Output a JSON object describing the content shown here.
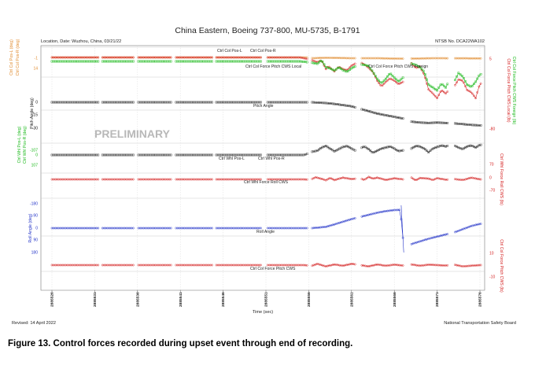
{
  "chart_data": {
    "type": "line",
    "title": "China Eastern, Boeing 737-800, MU-5735, B-1791",
    "location_date": "Location, Date: Wuzhou, China, 03/21/22",
    "ntsb_no": "NTSB No. DCA22WA102",
    "watermark": "PRELIMINARY",
    "xlabel": "Time (sec)",
    "x_ticks": [
      "2885526",
      "2885531",
      "2885536",
      "2885541",
      "2885546",
      "2885551",
      "2885556",
      "2885561",
      "2885566",
      "2885571",
      "2885576"
    ],
    "revised": "Revised: 14 April 2022",
    "agency": "National Transportation Safety Board",
    "panels": [
      {
        "left_labels": [
          {
            "text": "Ctrl Col Pos-L (deg)",
            "color": "#e08a2c"
          },
          {
            "text": "Ctrl Col Pos-R (deg)",
            "color": "#e08a2c"
          }
        ],
        "left_ticks": [
          "-1",
          "14"
        ],
        "right_labels": [
          {
            "text": "Ctrl Col Force Pitch CWS Local (lb)",
            "color": "#d42020"
          },
          {
            "text": "Ctrl Col Force Pitch CWS Foreign (lb)",
            "color": "#18b818"
          }
        ],
        "right_ticks": [
          "5",
          "-80"
        ],
        "series": [
          "Ctrl Col Pos-L",
          "Ctrl Col Pos-R",
          "Ctrl Col Force Pitch CWS Local",
          "Ctrl Col Force Pitch CWS Foreign"
        ]
      },
      {
        "left_labels": [
          {
            "text": "Pitch Angle (deg)",
            "color": "#111111"
          }
        ],
        "left_ticks": [
          "0",
          "-15",
          "-30"
        ],
        "series": [
          "Pitch Angle"
        ]
      },
      {
        "left_labels": [
          {
            "text": "Ctrl Whl Pos-L (deg)",
            "color": "#18b818"
          },
          {
            "text": "Ctrl Whl Pos-R (deg)",
            "color": "#18b818"
          }
        ],
        "left_ticks": [
          "-107",
          "0",
          "107"
        ],
        "series": [
          "Ctrl Whl Pos-L",
          "Ctrl Whl Pos-R"
        ]
      },
      {
        "right_labels": [
          {
            "text": "Ctrl Whl Force Roll CWS (lb)",
            "color": "#d42020"
          }
        ],
        "right_ticks": [
          "70",
          "0",
          "-70"
        ],
        "series": [
          "Ctrl Whl Force Roll CWS"
        ]
      },
      {
        "left_labels": [
          {
            "text": "Roll Angle (deg)",
            "color": "#2434c8"
          }
        ],
        "left_ticks": [
          "-180",
          "-90",
          "0",
          "90",
          "180"
        ],
        "series": [
          "Roll Angle"
        ]
      },
      {
        "right_labels": [
          {
            "text": "Ctrl Col Force Pitch CWS (lb)",
            "color": "#d42020"
          }
        ],
        "right_ticks": [
          "10",
          "-10"
        ],
        "series": [
          "Ctrl Col Force Pitch CWS"
        ]
      }
    ],
    "data_segments": [
      [
        2885526,
        2885531.4
      ],
      [
        2885531.9,
        2885535.6
      ],
      [
        2885536.1,
        2885540.0
      ],
      [
        2885540.5,
        2885544.7
      ],
      [
        2885545.2,
        2885550.4
      ],
      [
        2885551.2,
        2885555.9
      ],
      [
        2885556.4,
        2885561.4
      ],
      [
        2885562.2,
        2885567.1
      ],
      [
        2885568.0,
        2885572.3
      ],
      [
        2885573.1,
        2885576.2
      ]
    ],
    "series": [
      {
        "name": "Ctrl Col Pos-L",
        "color": "#e08a2c",
        "data": [
          [
            2885526.0,
            1.0
          ],
          [
            2885555.8,
            1.0
          ],
          [
            2885556.5,
            0.5
          ],
          [
            2885558.0,
            0.8
          ],
          [
            2885561.0,
            0.5
          ],
          [
            2885564.0,
            0.5
          ],
          [
            2885567.0,
            0.2
          ],
          [
            2885570.5,
            0.5
          ],
          [
            2885576.0,
            0.4
          ]
        ]
      },
      {
        "name": "Ctrl Col Force Pitch CWS Local",
        "color": "#d42020",
        "data": [
          [
            2885526.0,
            0.0
          ],
          [
            2885555.0,
            0.0
          ],
          [
            2885556.2,
            -4.0
          ],
          [
            2885557.0,
            -8.0
          ],
          [
            2885557.5,
            -5.0
          ],
          [
            2885558.0,
            -20.0
          ],
          [
            2885558.3,
            -15.0
          ],
          [
            2885559.0,
            -24.0
          ],
          [
            2885559.5,
            -16.0
          ],
          [
            2885560.0,
            -20.0
          ],
          [
            2885560.5,
            -22.0
          ],
          [
            2885561.0,
            -14.0
          ],
          [
            2885561.5,
            -10.0
          ],
          [
            2885562.0,
            -8.0
          ],
          [
            2885562.5,
            -12.0
          ],
          [
            2885563.0,
            -18.0
          ],
          [
            2885563.5,
            -25.0
          ],
          [
            2885564.0,
            -40.0
          ],
          [
            2885564.5,
            -50.0
          ],
          [
            2885565.0,
            -42.0
          ],
          [
            2885565.5,
            -36.0
          ],
          [
            2885566.0,
            -40.0
          ],
          [
            2885566.5,
            -46.0
          ],
          [
            2885567.0,
            -42.0
          ],
          [
            2885568.0,
            -10.0
          ],
          [
            2885568.5,
            -18.0
          ],
          [
            2885569.0,
            -16.0
          ],
          [
            2885569.5,
            -30.0
          ],
          [
            2885570.0,
            -55.0
          ],
          [
            2885570.5,
            -62.0
          ],
          [
            2885571.0,
            -70.0
          ],
          [
            2885571.5,
            -56.0
          ],
          [
            2885572.0,
            -62.0
          ],
          [
            2885572.5,
            -54.0
          ],
          [
            2885573.0,
            -50.0
          ],
          [
            2885573.5,
            -38.0
          ],
          [
            2885574.0,
            -40.0
          ],
          [
            2885574.5,
            -56.0
          ],
          [
            2885575.0,
            -60.0
          ],
          [
            2885575.5,
            -70.0
          ],
          [
            2885576.0,
            -45.0
          ]
        ]
      },
      {
        "name": "Ctrl Col Force Pitch CWS Foreign",
        "color": "#18b818",
        "data": [
          [
            2885526.0,
            0.0
          ],
          [
            2885555.0,
            0.0
          ],
          [
            2885556.2,
            -2.0
          ],
          [
            2885557.0,
            -4.0
          ],
          [
            2885557.5,
            2.0
          ],
          [
            2885558.0,
            -10.0
          ],
          [
            2885558.5,
            -12.0
          ],
          [
            2885559.0,
            -16.0
          ],
          [
            2885559.5,
            -10.0
          ],
          [
            2885560.0,
            -15.0
          ],
          [
            2885560.5,
            -18.0
          ],
          [
            2885561.0,
            -12.0
          ],
          [
            2885561.5,
            -8.0
          ],
          [
            2885562.0,
            -5.0
          ],
          [
            2885562.5,
            -6.0
          ],
          [
            2885563.0,
            -8.0
          ],
          [
            2885563.5,
            -18.0
          ],
          [
            2885564.0,
            -30.0
          ],
          [
            2885564.5,
            -38.0
          ],
          [
            2885565.0,
            -30.0
          ],
          [
            2885565.5,
            -20.0
          ],
          [
            2885566.0,
            -28.0
          ],
          [
            2885566.5,
            -35.0
          ],
          [
            2885567.0,
            -28.0
          ],
          [
            2885568.0,
            -4.0
          ],
          [
            2885568.5,
            -6.0
          ],
          [
            2885569.0,
            -10.0
          ],
          [
            2885569.5,
            -18.0
          ],
          [
            2885570.0,
            -40.0
          ],
          [
            2885570.5,
            -45.0
          ],
          [
            2885571.0,
            -50.0
          ],
          [
            2885571.5,
            -38.0
          ],
          [
            2885572.0,
            -45.0
          ],
          [
            2885572.5,
            -30.0
          ],
          [
            2885573.0,
            -35.0
          ],
          [
            2885573.5,
            -20.0
          ],
          [
            2885574.0,
            -26.0
          ],
          [
            2885574.5,
            -40.0
          ],
          [
            2885575.0,
            -44.0
          ],
          [
            2885575.5,
            -35.0
          ],
          [
            2885576.0,
            -22.0
          ]
        ]
      },
      {
        "name": "Pitch Angle",
        "color": "#111111",
        "data": [
          [
            2885526.0,
            -2.0
          ],
          [
            2885556.4,
            -2.0
          ],
          [
            2885558.0,
            -3.0
          ],
          [
            2885559.0,
            -4.0
          ],
          [
            2885560.0,
            -5.5
          ],
          [
            2885561.0,
            -7.0
          ],
          [
            2885562.0,
            -10.0
          ],
          [
            2885563.0,
            -13.0
          ],
          [
            2885564.0,
            -16.0
          ],
          [
            2885565.0,
            -18.0
          ],
          [
            2885566.0,
            -20.0
          ],
          [
            2885567.0,
            -22.0
          ],
          [
            2885568.0,
            -26.0
          ],
          [
            2885569.0,
            -27.0
          ],
          [
            2885570.0,
            -27.5
          ],
          [
            2885571.0,
            -27.0
          ],
          [
            2885572.0,
            -27.5
          ],
          [
            2885573.0,
            -28.0
          ],
          [
            2885574.0,
            -29.0
          ],
          [
            2885575.0,
            -30.0
          ],
          [
            2885576.0,
            -30.5
          ]
        ]
      },
      {
        "name": "Ctrl Whl Pos-L",
        "color": "#111111",
        "data": [
          [
            2885526.0,
            0.0
          ],
          [
            2885555.5,
            0.0
          ],
          [
            2885556.4,
            -30.0
          ],
          [
            2885557.0,
            -40.0
          ],
          [
            2885557.5,
            -70.0
          ],
          [
            2885558.0,
            -85.0
          ],
          [
            2885558.5,
            -60.0
          ],
          [
            2885559.0,
            -35.0
          ],
          [
            2885559.5,
            -55.0
          ],
          [
            2885560.0,
            -75.0
          ],
          [
            2885560.5,
            -85.0
          ],
          [
            2885561.0,
            -60.0
          ],
          [
            2885561.5,
            -40.0
          ],
          [
            2885562.0,
            -60.0
          ],
          [
            2885562.5,
            -80.0
          ],
          [
            2885563.0,
            -55.0
          ],
          [
            2885563.5,
            -20.0
          ],
          [
            2885564.0,
            -40.0
          ],
          [
            2885564.5,
            -60.0
          ],
          [
            2885565.0,
            -70.0
          ],
          [
            2885565.5,
            -80.0
          ],
          [
            2885566.0,
            -60.0
          ],
          [
            2885566.5,
            -35.0
          ],
          [
            2885567.1,
            -45.0
          ],
          [
            2885568.0,
            -60.0
          ],
          [
            2885568.5,
            -85.0
          ],
          [
            2885569.0,
            -80.0
          ],
          [
            2885569.5,
            -60.0
          ],
          [
            2885570.0,
            -25.0
          ],
          [
            2885570.5,
            -60.0
          ],
          [
            2885571.0,
            -75.0
          ],
          [
            2885571.5,
            -90.0
          ],
          [
            2885572.0,
            -80.0
          ],
          [
            2885572.5,
            -95.0
          ],
          [
            2885573.0,
            -90.0
          ],
          [
            2885573.5,
            -70.0
          ],
          [
            2885574.0,
            -55.0
          ],
          [
            2885574.5,
            -80.0
          ],
          [
            2885575.0,
            -90.0
          ],
          [
            2885575.5,
            -70.0
          ],
          [
            2885576.0,
            -95.0
          ]
        ]
      },
      {
        "name": "Ctrl Whl Force Roll CWS",
        "color": "#d42020",
        "data": [
          [
            2885526.0,
            0.0
          ],
          [
            2885555.5,
            0.0
          ],
          [
            2885556.2,
            -2.0
          ],
          [
            2885556.8,
            12.0
          ],
          [
            2885557.5,
            3.0
          ],
          [
            2885558.0,
            -5.0
          ],
          [
            2885558.5,
            8.0
          ],
          [
            2885559.0,
            -4.0
          ],
          [
            2885560.0,
            10.0
          ],
          [
            2885561.0,
            2.0
          ],
          [
            2885562.0,
            6.0
          ],
          [
            2885562.5,
            -3.0
          ],
          [
            2885563.0,
            14.0
          ],
          [
            2885563.5,
            4.0
          ],
          [
            2885564.0,
            10.0
          ],
          [
            2885565.0,
            -3.0
          ],
          [
            2885566.0,
            6.0
          ],
          [
            2885567.0,
            0.0
          ],
          [
            2885568.0,
            10.0
          ],
          [
            2885568.5,
            -6.0
          ],
          [
            2885569.0,
            8.0
          ],
          [
            2885570.0,
            4.0
          ],
          [
            2885570.5,
            -4.0
          ],
          [
            2885571.0,
            7.0
          ],
          [
            2885572.0,
            -2.0
          ],
          [
            2885573.0,
            2.0
          ],
          [
            2885574.0,
            -4.0
          ],
          [
            2885575.0,
            10.0
          ],
          [
            2885576.0,
            0.0
          ]
        ]
      },
      {
        "name": "Roll Angle",
        "color": "#2434c8",
        "data": [
          [
            2885526.0,
            0.0
          ],
          [
            2885556.4,
            0.0
          ],
          [
            2885558.0,
            -12.0
          ],
          [
            2885559.0,
            -35.0
          ],
          [
            2885560.0,
            -60.0
          ],
          [
            2885561.0,
            -85.0
          ],
          [
            2885562.0,
            -105.0
          ],
          [
            2885563.0,
            -125.0
          ],
          [
            2885564.0,
            -145.0
          ],
          [
            2885565.0,
            -160.0
          ],
          [
            2885566.0,
            -170.0
          ],
          [
            2885566.7,
            -172.0
          ],
          [
            2885567.1,
            180.0
          ],
          [
            2885568.0,
            150.0
          ],
          [
            2885569.0,
            125.0
          ],
          [
            2885570.0,
            100.0
          ],
          [
            2885571.0,
            80.0
          ],
          [
            2885572.0,
            60.0
          ],
          [
            2885573.0,
            40.0
          ],
          [
            2885574.0,
            10.0
          ],
          [
            2885575.0,
            -20.0
          ],
          [
            2885576.0,
            -40.0
          ]
        ]
      },
      {
        "name": "Ctrl Col Force Pitch CWS",
        "color": "#d42020",
        "data": [
          [
            2885526.0,
            0.0
          ],
          [
            2885555.5,
            0.0
          ],
          [
            2885556.4,
            -0.5
          ],
          [
            2885557.0,
            1.0
          ],
          [
            2885558.0,
            -1.0
          ],
          [
            2885559.0,
            0.5
          ],
          [
            2885560.0,
            -0.5
          ],
          [
            2885561.0,
            1.0
          ],
          [
            2885562.0,
            0.0
          ],
          [
            2885563.0,
            -1.0
          ],
          [
            2885564.0,
            0.5
          ],
          [
            2885565.0,
            -0.5
          ],
          [
            2885566.0,
            0.3
          ],
          [
            2885567.0,
            -0.3
          ],
          [
            2885568.0,
            0.5
          ],
          [
            2885569.0,
            -0.5
          ],
          [
            2885570.0,
            0.3
          ],
          [
            2885571.0,
            0.0
          ],
          [
            2885572.0,
            -0.3
          ],
          [
            2885573.0,
            0.3
          ],
          [
            2885574.0,
            -1.0
          ],
          [
            2885575.0,
            -0.5
          ],
          [
            2885576.0,
            0.0
          ]
        ]
      }
    ],
    "annotations": [
      "Ctrl Col Pos-L",
      "Ctrl Col Pos-R",
      "Ctrl Col Force Pitch CWS Local",
      "Ctrl Col Force Pitch CWS Foreign",
      "Pitch Angle",
      "Ctrl Whl Pos-L",
      "Ctrl Whl Pos-R",
      "Ctrl Whl Force Roll CWS",
      "Roll Angle",
      "Ctrl Col Force Pitch CWS"
    ],
    "grid": true
  },
  "caption": "Figure 13. Control forces recorded during upset event through end of recording."
}
